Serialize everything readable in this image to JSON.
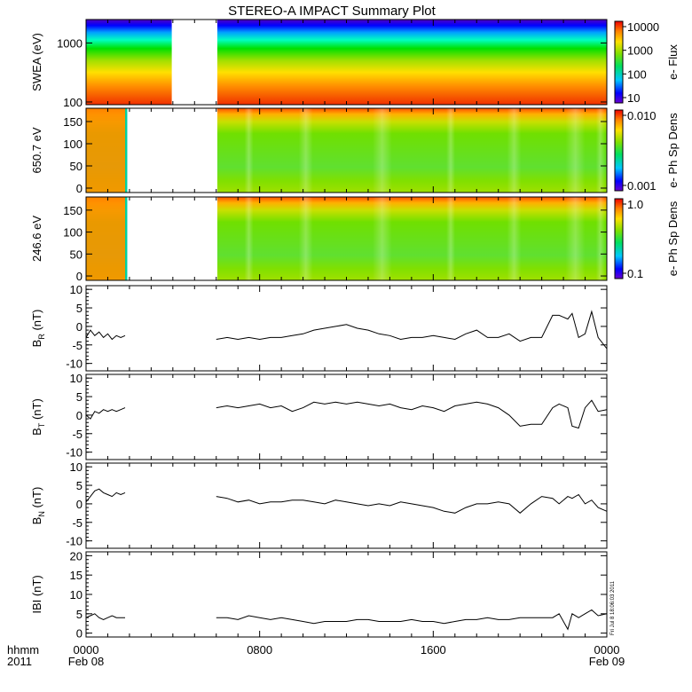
{
  "chart_data": {
    "type": "line",
    "title": "STEREO-A IMPACT Summary Plot",
    "x_axis": {
      "corner_label_top": "hhmm",
      "corner_label_bottom": "2011",
      "range_hours": [
        0,
        24
      ],
      "ticks": [
        {
          "hour": 0,
          "time": "0000",
          "date": "Feb 08"
        },
        {
          "hour": 8,
          "time": "0800",
          "date": ""
        },
        {
          "hour": 16,
          "time": "1600",
          "date": ""
        },
        {
          "hour": 24,
          "time": "0000",
          "date": "Feb 09"
        }
      ],
      "minor_tick_hours": 1
    },
    "spectrograms": [
      {
        "id": "swea",
        "ylabel": "SWEA (eV)",
        "ylog": true,
        "ylim": [
          90,
          2500
        ],
        "yticks": [
          {
            "v": 100,
            "label": "100"
          },
          {
            "v": 1000,
            "label": "1000"
          }
        ],
        "colorbar_label": "e- Flux",
        "colorbar_log": true,
        "colorbar_ticks": [
          "10000",
          "1000",
          "100",
          "10"
        ],
        "data_gaps_hours": [
          [
            3.95,
            6.05
          ]
        ]
      },
      {
        "id": "pad650",
        "ylabel": "650.7 eV",
        "ylog": false,
        "ylim": [
          -10,
          180
        ],
        "yticks": [
          {
            "v": 0,
            "label": "0"
          },
          {
            "v": 50,
            "label": "50"
          },
          {
            "v": 100,
            "label": "100"
          },
          {
            "v": 150,
            "label": "150"
          }
        ],
        "colorbar_label": "e- Ph Sp Dens",
        "colorbar_log": true,
        "colorbar_ticks": [
          "0.010",
          "0.001"
        ],
        "data_gaps_hours": [
          [
            1.9,
            6.05
          ]
        ]
      },
      {
        "id": "pad246",
        "ylabel": "246.6 eV",
        "ylog": false,
        "ylim": [
          -10,
          180
        ],
        "yticks": [
          {
            "v": 0,
            "label": "0"
          },
          {
            "v": 50,
            "label": "50"
          },
          {
            "v": 100,
            "label": "100"
          },
          {
            "v": 150,
            "label": "150"
          }
        ],
        "colorbar_label": "e- Ph Sp Dens",
        "colorbar_log": true,
        "colorbar_ticks": [
          "1.0",
          "0.1"
        ],
        "data_gaps_hours": [
          [
            1.9,
            6.05
          ]
        ]
      }
    ],
    "series": [
      {
        "id": "BR",
        "ylabel_main": "B",
        "ylabel_sub": "R",
        "ylabel_unit": " (nT)",
        "ylim": [
          -12,
          11
        ],
        "yticks": [
          -10,
          -5,
          0,
          5,
          10
        ],
        "x": [
          0,
          0.2,
          0.4,
          0.6,
          0.8,
          1.0,
          1.2,
          1.4,
          1.6,
          1.8,
          6.0,
          6.5,
          7.0,
          7.5,
          8.0,
          8.5,
          9.0,
          9.5,
          10.0,
          10.5,
          11.0,
          11.5,
          12.0,
          12.5,
          13.0,
          13.5,
          14.0,
          14.5,
          15.0,
          15.5,
          16.0,
          16.5,
          17.0,
          17.5,
          18.0,
          18.5,
          19.0,
          19.5,
          20.0,
          20.5,
          21.0,
          21.5,
          21.8,
          22.2,
          22.4,
          22.7,
          23.0,
          23.3,
          23.6,
          24.0
        ],
        "y": [
          -3,
          -1,
          -2.5,
          -1.5,
          -3,
          -2,
          -3.5,
          -2.5,
          -3,
          -2.5,
          -3.5,
          -3,
          -3.5,
          -3,
          -3.5,
          -3,
          -3,
          -2.5,
          -2,
          -1,
          -0.5,
          0,
          0.5,
          -0.5,
          -1,
          -2,
          -2.5,
          -3.5,
          -3,
          -3,
          -2.5,
          -3,
          -3.5,
          -2,
          -1,
          -3,
          -3,
          -2,
          -4,
          -3,
          -3,
          3,
          3,
          2,
          3.5,
          -3,
          -2,
          4,
          -3,
          -6
        ]
      },
      {
        "id": "BT",
        "ylabel_main": "B",
        "ylabel_sub": "T",
        "ylabel_unit": " (nT)",
        "ylim": [
          -12,
          11
        ],
        "yticks": [
          -10,
          -5,
          0,
          5,
          10
        ],
        "x": [
          0,
          0.2,
          0.4,
          0.6,
          0.8,
          1.0,
          1.2,
          1.4,
          1.6,
          1.8,
          6.0,
          6.5,
          7.0,
          7.5,
          8.0,
          8.5,
          9.0,
          9.5,
          10.0,
          10.5,
          11.0,
          11.5,
          12.0,
          12.5,
          13.0,
          13.5,
          14.0,
          14.5,
          15.0,
          15.5,
          16.0,
          16.5,
          17.0,
          17.5,
          18.0,
          18.5,
          19.0,
          19.5,
          20.0,
          20.5,
          21.0,
          21.5,
          21.8,
          22.2,
          22.4,
          22.7,
          23.0,
          23.3,
          23.6,
          24.0
        ],
        "y": [
          0,
          -1,
          1,
          0.5,
          1.5,
          1,
          1.5,
          1,
          1.5,
          2,
          2,
          2.5,
          2,
          2.5,
          3,
          2,
          2.5,
          1,
          2,
          3.5,
          3,
          3.5,
          3,
          3.5,
          3,
          2.5,
          3,
          2,
          1.5,
          2.5,
          2,
          1,
          2.5,
          3,
          3.5,
          3,
          2,
          0,
          -3,
          -2.5,
          -2.5,
          2,
          3,
          2,
          -3,
          -3.5,
          2,
          4,
          1,
          1.5
        ]
      },
      {
        "id": "BN",
        "ylabel_main": "B",
        "ylabel_sub": "N",
        "ylabel_unit": " (nT)",
        "ylim": [
          -12,
          11
        ],
        "yticks": [
          -10,
          -5,
          0,
          5,
          10
        ],
        "x": [
          0,
          0.2,
          0.4,
          0.6,
          0.8,
          1.0,
          1.2,
          1.4,
          1.6,
          1.8,
          6.0,
          6.5,
          7.0,
          7.5,
          8.0,
          8.5,
          9.0,
          9.5,
          10.0,
          10.5,
          11.0,
          11.5,
          12.0,
          12.5,
          13.0,
          13.5,
          14.0,
          14.5,
          15.0,
          15.5,
          16.0,
          16.5,
          17.0,
          17.5,
          18.0,
          18.5,
          19.0,
          19.5,
          20.0,
          20.5,
          21.0,
          21.5,
          21.8,
          22.2,
          22.4,
          22.7,
          23.0,
          23.3,
          23.6,
          24.0
        ],
        "y": [
          0.5,
          2,
          3.5,
          4,
          3,
          2.5,
          2,
          3,
          2.5,
          3,
          2,
          1.5,
          0.5,
          1,
          0,
          0.5,
          0.5,
          1,
          1,
          0.5,
          0,
          1,
          0.5,
          0,
          -0.5,
          0,
          -0.5,
          0.5,
          0,
          -0.5,
          -1,
          -2,
          -2.5,
          -1,
          0,
          0,
          0.5,
          0,
          -2.5,
          0,
          2,
          1.5,
          0,
          2,
          1.5,
          2.5,
          0,
          1,
          -1,
          -2
        ]
      },
      {
        "id": "Bmag",
        "ylabel_main": "IBI",
        "ylabel_sub": "",
        "ylabel_unit": " (nT)",
        "ylim": [
          -1,
          21
        ],
        "yticks": [
          0,
          5,
          10,
          15,
          20
        ],
        "x": [
          0,
          0.2,
          0.4,
          0.6,
          0.8,
          1.0,
          1.2,
          1.4,
          1.6,
          1.8,
          6.0,
          6.5,
          7.0,
          7.5,
          8.0,
          8.5,
          9.0,
          9.5,
          10.0,
          10.5,
          11.0,
          11.5,
          12.0,
          12.5,
          13.0,
          13.5,
          14.0,
          14.5,
          15.0,
          15.5,
          16.0,
          16.5,
          17.0,
          17.5,
          18.0,
          18.5,
          19.0,
          19.5,
          20.0,
          20.5,
          21.0,
          21.5,
          21.8,
          22.2,
          22.4,
          22.7,
          23.0,
          23.3,
          23.6,
          24.0
        ],
        "y": [
          4,
          4.5,
          5,
          4,
          3.5,
          4,
          4.5,
          4,
          4,
          4,
          4,
          4,
          3.5,
          4.5,
          4,
          3.5,
          4,
          3.5,
          3,
          2.5,
          3,
          3,
          3,
          3.5,
          3.5,
          3,
          3,
          3,
          3.5,
          3,
          3,
          2.5,
          3,
          3.5,
          3.5,
          4,
          3.5,
          3.5,
          4,
          4,
          4,
          4,
          5,
          1,
          5,
          4,
          5,
          6,
          4.5,
          5
        ]
      }
    ],
    "colors": {
      "line": "#000000",
      "axis": "#000000",
      "background": "#ffffff"
    },
    "side_annotation": "Fri Jul 8 18:06:03 2011"
  }
}
